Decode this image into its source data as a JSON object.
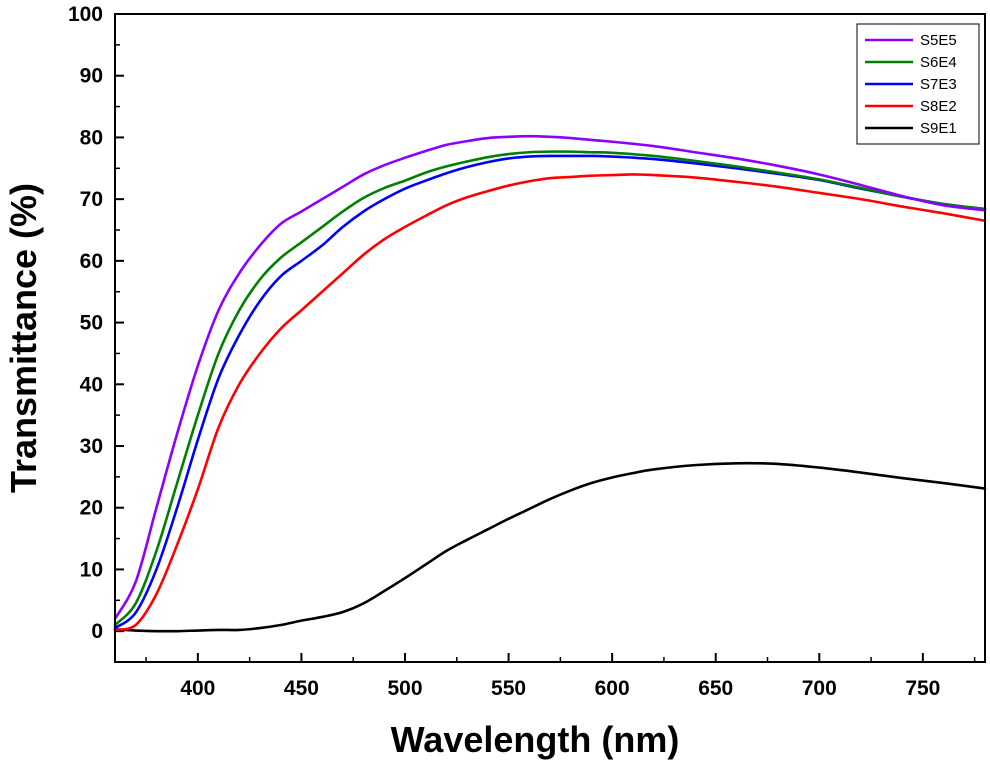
{
  "chart_data": {
    "type": "line",
    "xlabel": "Wavelength (nm)",
    "ylabel": "Transmittance (%)",
    "xlim": [
      360,
      780
    ],
    "ylim": [
      -5,
      100
    ],
    "xticks": [
      400,
      450,
      500,
      550,
      600,
      650,
      700,
      750
    ],
    "yticks": [
      0,
      10,
      20,
      30,
      40,
      50,
      60,
      70,
      80,
      90,
      100
    ],
    "grid": false,
    "legend_position": "top-right",
    "series": [
      {
        "name": "S5E5",
        "color": "#8B00FF",
        "x": [
          360,
          370,
          380,
          390,
          400,
          410,
          420,
          430,
          440,
          450,
          460,
          470,
          480,
          490,
          500,
          510,
          520,
          530,
          540,
          550,
          560,
          570,
          580,
          590,
          600,
          620,
          640,
          660,
          680,
          700,
          720,
          740,
          760,
          780
        ],
        "y": [
          2,
          8,
          20,
          32,
          43,
          52,
          58,
          62.5,
          66,
          68,
          70,
          72,
          74,
          75.5,
          76.7,
          77.8,
          78.8,
          79.4,
          79.9,
          80.1,
          80.2,
          80.1,
          79.9,
          79.6,
          79.3,
          78.6,
          77.6,
          76.6,
          75.4,
          74,
          72.3,
          70.5,
          69,
          68.2
        ]
      },
      {
        "name": "S6E4",
        "color": "#008000",
        "x": [
          360,
          370,
          380,
          390,
          400,
          410,
          420,
          430,
          440,
          450,
          460,
          470,
          480,
          490,
          500,
          510,
          520,
          530,
          540,
          550,
          560,
          570,
          580,
          590,
          600,
          620,
          640,
          660,
          680,
          700,
          720,
          740,
          760,
          780
        ],
        "y": [
          1,
          4.5,
          13,
          24,
          35,
          45,
          52,
          57,
          60.5,
          63,
          65.5,
          68,
          70.2,
          71.8,
          73,
          74.3,
          75.3,
          76.1,
          76.8,
          77.3,
          77.6,
          77.7,
          77.7,
          77.6,
          77.5,
          77,
          76.2,
          75.3,
          74.3,
          73.2,
          71.8,
          70.4,
          69.2,
          68.4
        ]
      },
      {
        "name": "S7E3",
        "color": "#0000FF",
        "x": [
          360,
          370,
          380,
          390,
          400,
          410,
          420,
          430,
          440,
          450,
          460,
          470,
          480,
          490,
          500,
          510,
          520,
          530,
          540,
          550,
          560,
          570,
          580,
          590,
          600,
          620,
          640,
          660,
          680,
          700,
          720,
          740,
          760,
          780
        ],
        "y": [
          0.5,
          3,
          10,
          20,
          31,
          41,
          48,
          53.5,
          57.5,
          60,
          62.5,
          65.5,
          68,
          70,
          71.7,
          73,
          74.2,
          75.2,
          76,
          76.6,
          76.9,
          77,
          77,
          77,
          76.9,
          76.5,
          75.8,
          75,
          74.1,
          73.1,
          71.7,
          70.4,
          69.2,
          68.4
        ]
      },
      {
        "name": "S8E2",
        "color": "#FF0000",
        "x": [
          360,
          370,
          380,
          390,
          400,
          410,
          420,
          430,
          440,
          450,
          460,
          470,
          480,
          490,
          500,
          510,
          520,
          530,
          540,
          550,
          560,
          570,
          580,
          590,
          600,
          610,
          620,
          640,
          660,
          680,
          700,
          720,
          740,
          760,
          780
        ],
        "y": [
          0.2,
          1,
          6,
          14,
          23,
          33,
          40,
          45,
          49,
          52,
          55,
          58,
          61,
          63.5,
          65.5,
          67.3,
          69,
          70.3,
          71.3,
          72.2,
          72.9,
          73.4,
          73.6,
          73.8,
          73.9,
          74,
          73.9,
          73.5,
          72.8,
          72,
          71,
          70,
          68.8,
          67.7,
          66.5
        ]
      },
      {
        "name": "S9E1",
        "color": "#000000",
        "x": [
          360,
          370,
          380,
          390,
          400,
          410,
          420,
          430,
          440,
          450,
          460,
          470,
          480,
          490,
          500,
          510,
          520,
          530,
          540,
          550,
          560,
          570,
          580,
          590,
          600,
          610,
          620,
          640,
          660,
          680,
          700,
          720,
          740,
          760,
          780
        ],
        "y": [
          0.3,
          0.1,
          0,
          0,
          0.1,
          0.2,
          0.2,
          0.5,
          1,
          1.7,
          2.3,
          3.1,
          4.5,
          6.5,
          8.6,
          10.8,
          13,
          14.8,
          16.5,
          18.2,
          19.8,
          21.4,
          22.8,
          24,
          24.9,
          25.6,
          26.2,
          26.9,
          27.2,
          27.1,
          26.5,
          25.7,
          24.8,
          24,
          23.1
        ]
      }
    ]
  }
}
